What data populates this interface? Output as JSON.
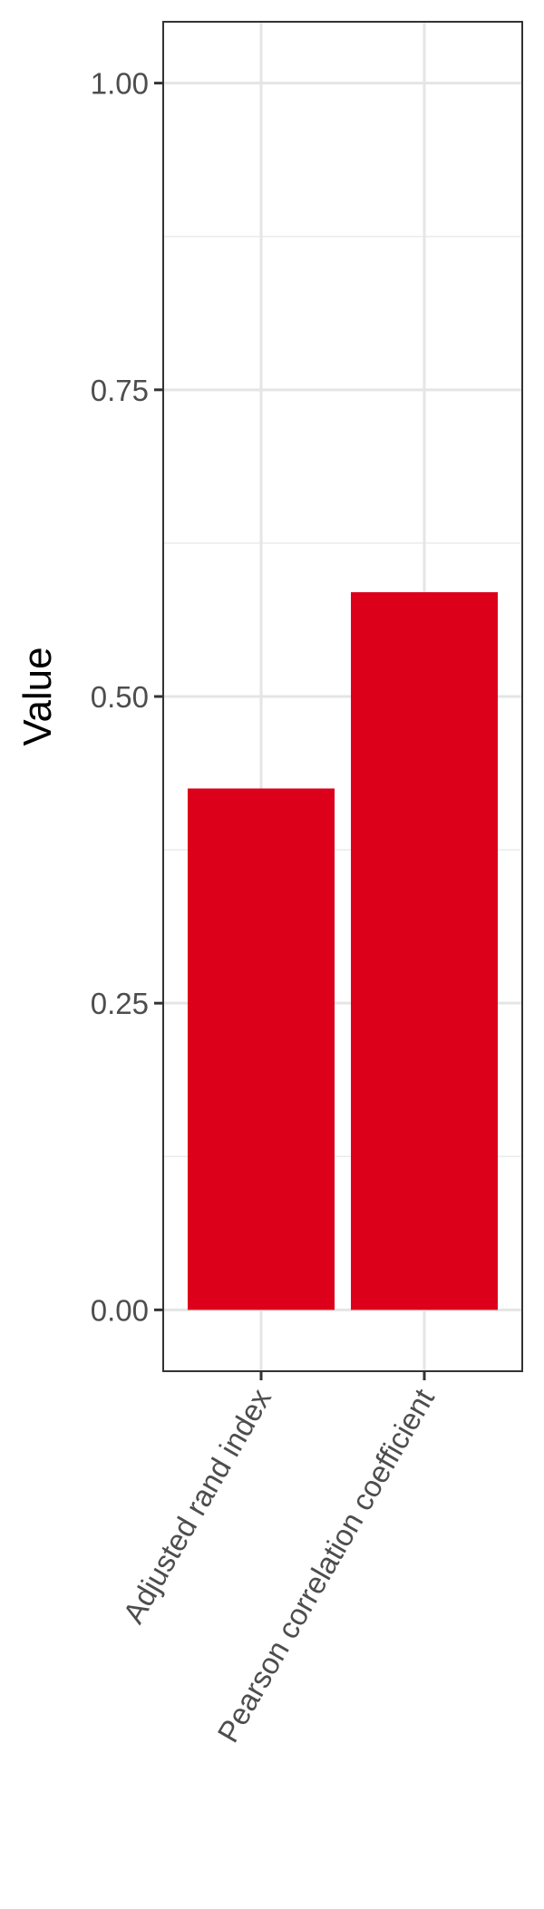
{
  "chart_data": {
    "type": "bar",
    "categories": [
      "Adjusted rand index",
      "Pearson correlation coefficient"
    ],
    "values": [
      0.425,
      0.585
    ],
    "title": "",
    "xlabel": "",
    "ylabel": "Value",
    "ylim": [
      -0.05,
      1.05
    ],
    "yticks": [
      "0.00",
      "0.25",
      "0.50",
      "0.75",
      "1.00"
    ],
    "grid": true,
    "bar_color": "#DC001B",
    "legend": "none"
  }
}
